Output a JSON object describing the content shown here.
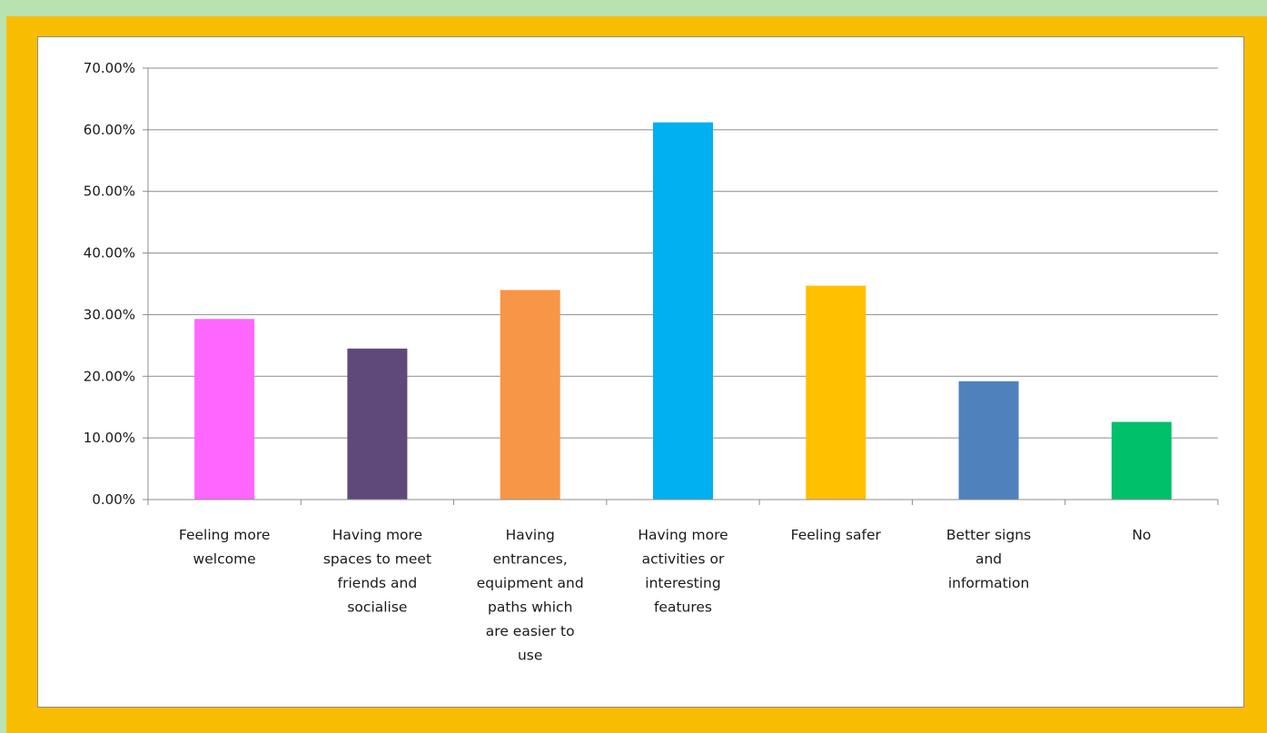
{
  "chart_data": {
    "type": "bar",
    "title": "",
    "xlabel": "",
    "ylabel": "",
    "ylim": [
      0,
      70
    ],
    "ytick_labels": [
      "0.00%",
      "10.00%",
      "20.00%",
      "30.00%",
      "40.00%",
      "50.00%",
      "60.00%",
      "70.00%"
    ],
    "grid": true,
    "legend": "none",
    "categories": [
      [
        "Feeling more",
        "welcome"
      ],
      [
        "Having more",
        "spaces to meet",
        "friends and",
        "socialise"
      ],
      [
        "Having",
        "entrances,",
        "equipment and",
        "paths which",
        "are easier to",
        "use"
      ],
      [
        "Having more",
        "activities or",
        "interesting",
        "features"
      ],
      [
        "Feeling safer"
      ],
      [
        "Better signs",
        "and",
        "information"
      ],
      [
        "No"
      ]
    ],
    "values": [
      29.3,
      24.5,
      34.0,
      61.2,
      34.7,
      19.2,
      12.6
    ],
    "colors": [
      "#ff66ff",
      "#5f497a",
      "#f79646",
      "#00b0f0",
      "#ffc000",
      "#4f81bd",
      "#00c06a"
    ]
  }
}
